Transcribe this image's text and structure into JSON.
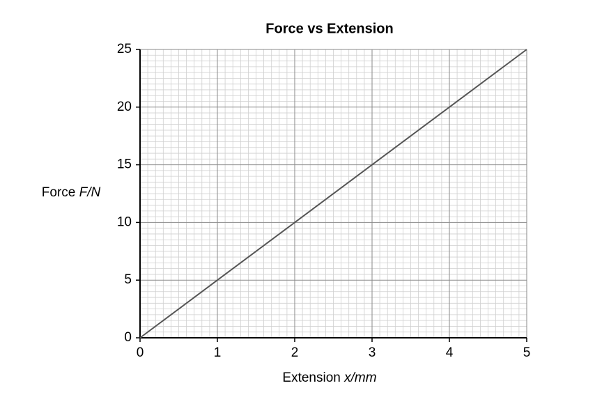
{
  "chart_data": {
    "type": "line",
    "title": "Force vs Extension",
    "x_label": "Extension x/mm",
    "y_label": "Force F/N",
    "x": [
      0,
      1,
      2,
      3,
      4,
      5
    ],
    "series": [
      {
        "name": "Force",
        "color": "#555555",
        "values": [
          0,
          5,
          10,
          15,
          20,
          25
        ]
      }
    ],
    "xlim": [
      0,
      5
    ],
    "xticks": [
      0,
      1,
      2,
      3,
      4,
      5
    ],
    "ylim": [
      0,
      25
    ],
    "yticks": [
      0,
      5,
      10,
      15,
      20,
      25
    ],
    "grid": true,
    "minor_grid": true
  }
}
